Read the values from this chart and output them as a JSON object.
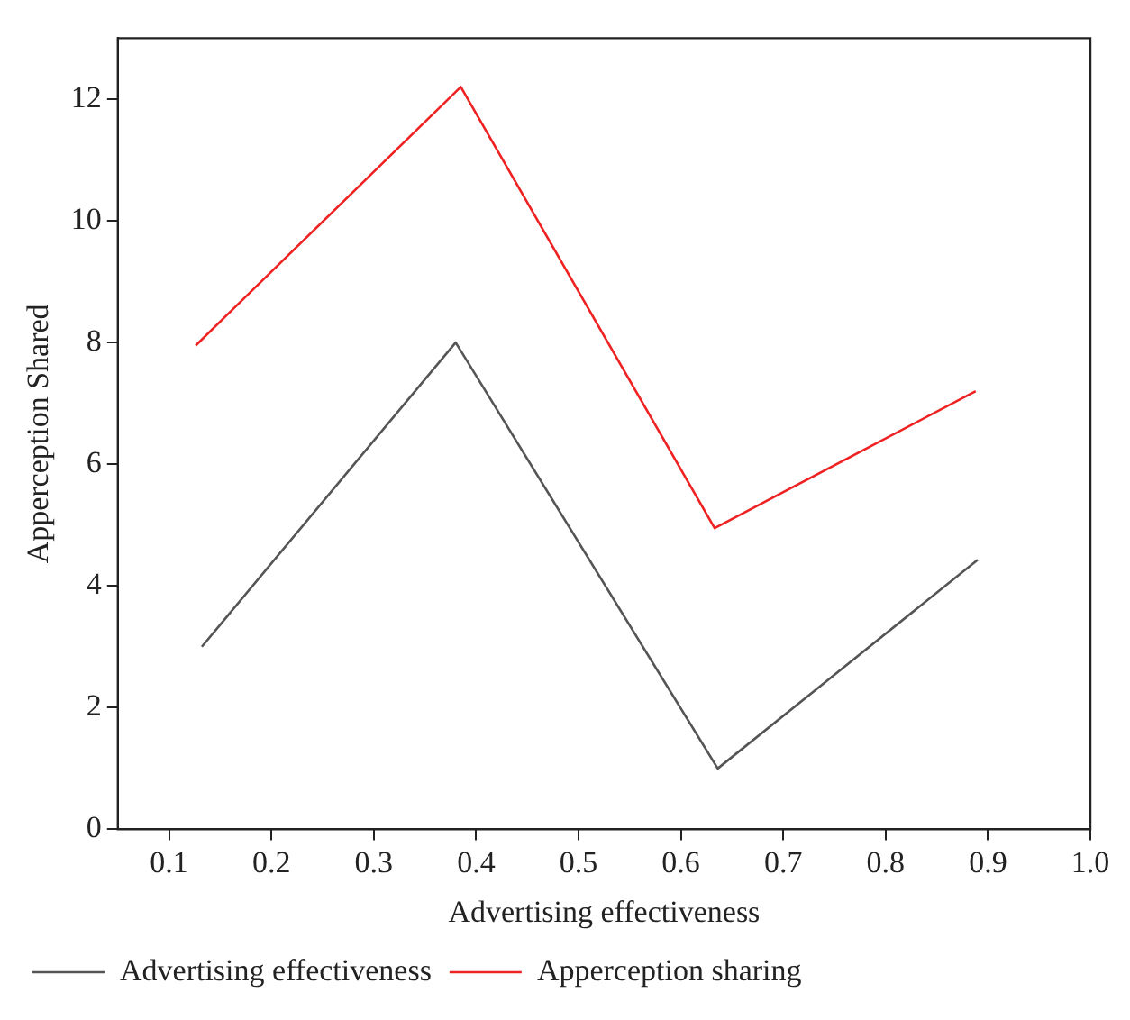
{
  "chart_data": {
    "type": "line",
    "xlabel": "Advertising effectiveness",
    "ylabel": "Apperception Shared",
    "xlim": [
      0.05,
      1.0
    ],
    "xticks": [
      {
        "value": 0.1,
        "label": "0.1"
      },
      {
        "value": 0.2,
        "label": "0.2"
      },
      {
        "value": 0.3,
        "label": "0.3"
      },
      {
        "value": 0.4,
        "label": "0.4"
      },
      {
        "value": 0.5,
        "label": "0.5"
      },
      {
        "value": 0.6,
        "label": "0.6"
      },
      {
        "value": 0.7,
        "label": "0.7"
      },
      {
        "value": 0.8,
        "label": "0.8"
      },
      {
        "value": 0.9,
        "label": "0.9"
      },
      {
        "value": 1.0,
        "label": "1.0"
      }
    ],
    "ylim": [
      0,
      13
    ],
    "yticks": [
      0,
      2,
      4,
      6,
      8,
      10,
      12
    ],
    "grid": false,
    "legend": "bottom left",
    "marker": "none",
    "line_style": "solid",
    "series": [
      {
        "name": "Advertising effectiveness",
        "color": "#555555",
        "x": [
          0.132,
          0.38,
          0.636,
          0.89
        ],
        "values": [
          3.0,
          8.0,
          1.0,
          4.43
        ]
      },
      {
        "name": "Apperception sharing",
        "color": "#ee2222",
        "x": [
          0.126,
          0.385,
          0.633,
          0.888
        ],
        "values": [
          7.95,
          12.2,
          4.95,
          7.2
        ]
      }
    ]
  }
}
